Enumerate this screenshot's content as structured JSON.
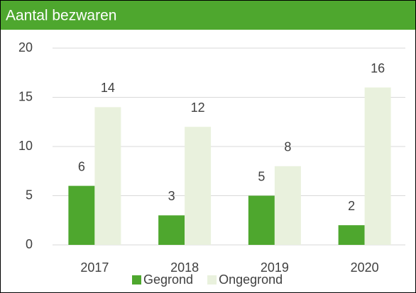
{
  "chart_data": {
    "type": "bar",
    "title": "Aantal bezwaren",
    "categories": [
      "2017",
      "2018",
      "2019",
      "2020"
    ],
    "series": [
      {
        "name": "Gegrond",
        "color": "#4ea72e",
        "values": [
          6,
          3,
          5,
          2
        ]
      },
      {
        "name": "Ongegrond",
        "color": "#e9f1dd",
        "values": [
          14,
          12,
          8,
          16
        ]
      }
    ],
    "ylim": [
      0,
      20
    ],
    "yticks": [
      0,
      5,
      10,
      15,
      20
    ],
    "grid": true,
    "legend": "bottom"
  }
}
